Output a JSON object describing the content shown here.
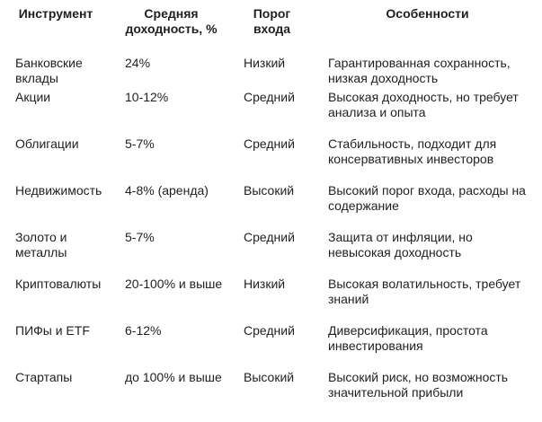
{
  "table": {
    "headers": [
      "Инструмент",
      "Средняя доходность, %",
      "Порог входа",
      "Особенности"
    ],
    "rows": [
      [
        "Банковские вклады",
        "24%",
        "Низкий",
        "Гарантированная сохранность, низкая доходность"
      ],
      [
        "Акции",
        "10-12%",
        "Средний",
        "Высокая доходность, но требует анализа и опыта"
      ],
      [
        "Облигации",
        "5-7%",
        "Средний",
        "Стабильность, подходит для консервативных инвесторов"
      ],
      [
        "Недвижимость",
        "4-8% (аренда)",
        "Высокий",
        "Высокий порог входа, расходы на содержание"
      ],
      [
        "Золото и металлы",
        "5-7%",
        "Средний",
        "Защита от инфляции, но невысокая доходность"
      ],
      [
        "Криптовалюты",
        "20-100% и выше",
        "Низкий",
        "Высокая волатильность, требует знаний"
      ],
      [
        "ПИФы и ETF",
        "6-12%",
        "Средний",
        "Диверсификация, простота инвестирования"
      ],
      [
        "Стартапы",
        "до 100% и выше",
        "Высокий",
        "Высокий риск, но возможность значительной прибыли"
      ]
    ]
  }
}
